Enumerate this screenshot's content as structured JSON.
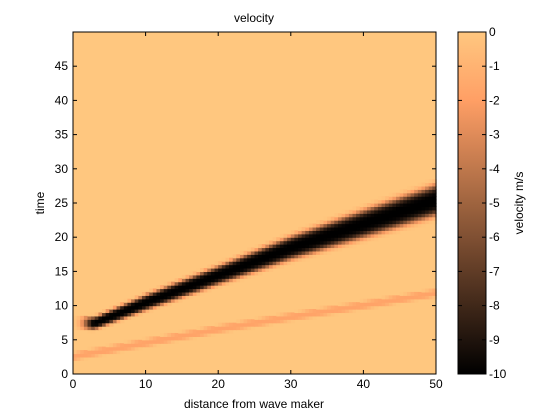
{
  "chart_data": {
    "type": "heatmap",
    "title": "velocity",
    "xlabel": "distance from wave maker",
    "ylabel": "time",
    "xlim": [
      0,
      50
    ],
    "ylim": [
      0,
      50
    ],
    "xticks": [
      "0",
      "10",
      "20",
      "30",
      "40",
      "50"
    ],
    "yticks": [
      "0",
      "5",
      "10",
      "15",
      "20",
      "25",
      "30",
      "35",
      "40",
      "45"
    ],
    "colorbar": {
      "label": "velocity m/s",
      "range": [
        -10,
        0
      ],
      "ticks": [
        "0",
        "-1",
        "-2",
        "-3",
        "-4",
        "-5",
        "-6",
        "-7",
        "-8",
        "-9",
        "-10"
      ],
      "colormap": "copper",
      "colors": {
        "min": "#000000",
        "max": "#ffc77f"
      }
    },
    "background_value": 0,
    "bands": [
      {
        "points": [
          [
            3,
            7.5
          ],
          [
            10,
            10.5
          ],
          [
            20,
            14.5
          ],
          [
            30,
            18.5
          ],
          [
            40,
            22
          ],
          [
            50,
            25.5
          ]
        ],
        "halfwidth": [
          0.8,
          1.0,
          1.2,
          1.5,
          1.8,
          2.0
        ],
        "peak": -10
      },
      {
        "points": [
          [
            0,
            2.6
          ],
          [
            10,
            4.6
          ],
          [
            20,
            6.6
          ],
          [
            30,
            8.4
          ],
          [
            40,
            10.1
          ],
          [
            50,
            11.9
          ]
        ],
        "halfwidth": [
          0.5,
          0.5,
          0.5,
          0.5,
          0.5,
          0.5
        ],
        "peak": -1.8
      }
    ]
  }
}
